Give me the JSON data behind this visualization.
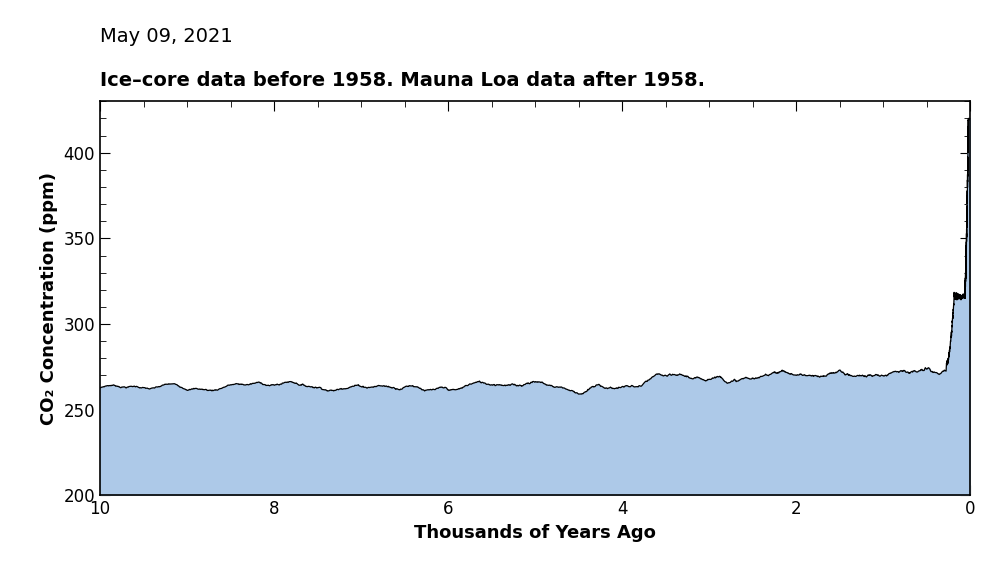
{
  "title_line1": "May 09, 2021",
  "title_line2": "Ice–core data before 1958. Mauna Loa data after 1958.",
  "xlabel": "Thousands of Years Ago",
  "ylabel": "CO₂ Concentration (ppm)",
  "xlim": [
    10,
    0
  ],
  "ylim": [
    200,
    430
  ],
  "yticks": [
    200,
    250,
    300,
    350,
    400
  ],
  "xticks": [
    10,
    8,
    6,
    4,
    2,
    0
  ],
  "fill_color": "#adc9e8",
  "line_color": "#000000",
  "bg_color": "#ffffff",
  "title1_fontsize": 14,
  "title2_fontsize": 14,
  "tick_labelsize": 12,
  "label_fontsize": 13
}
